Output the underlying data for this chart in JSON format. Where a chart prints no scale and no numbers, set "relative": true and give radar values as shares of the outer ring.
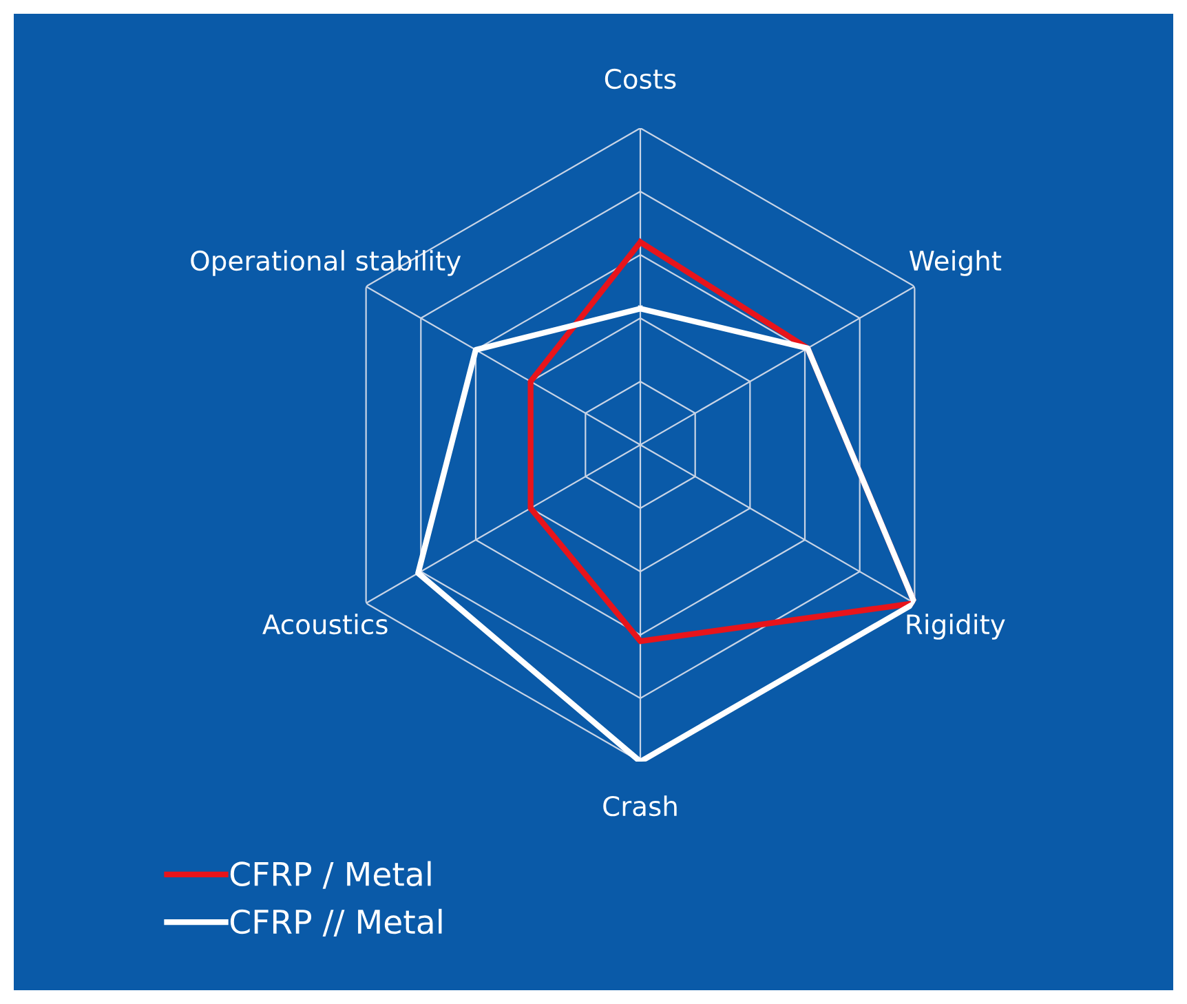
{
  "chart_data": {
    "type": "radar",
    "relative": true,
    "grid": true,
    "legend": "bottom left",
    "categories": [
      "Costs",
      "Weight",
      "Rigidity",
      "Crash",
      "Acoustics",
      "Operational stability"
    ],
    "series": [
      {
        "name": "CFRP / Metal",
        "color": "#e8141b",
        "values": [
          0.64,
          0.61,
          1.0,
          0.62,
          0.4,
          0.4
        ]
      },
      {
        "name": "CFRP // Metal",
        "color": "#ffffff",
        "values": [
          0.43,
          0.61,
          1.0,
          1.0,
          0.81,
          0.6
        ]
      }
    ]
  }
}
